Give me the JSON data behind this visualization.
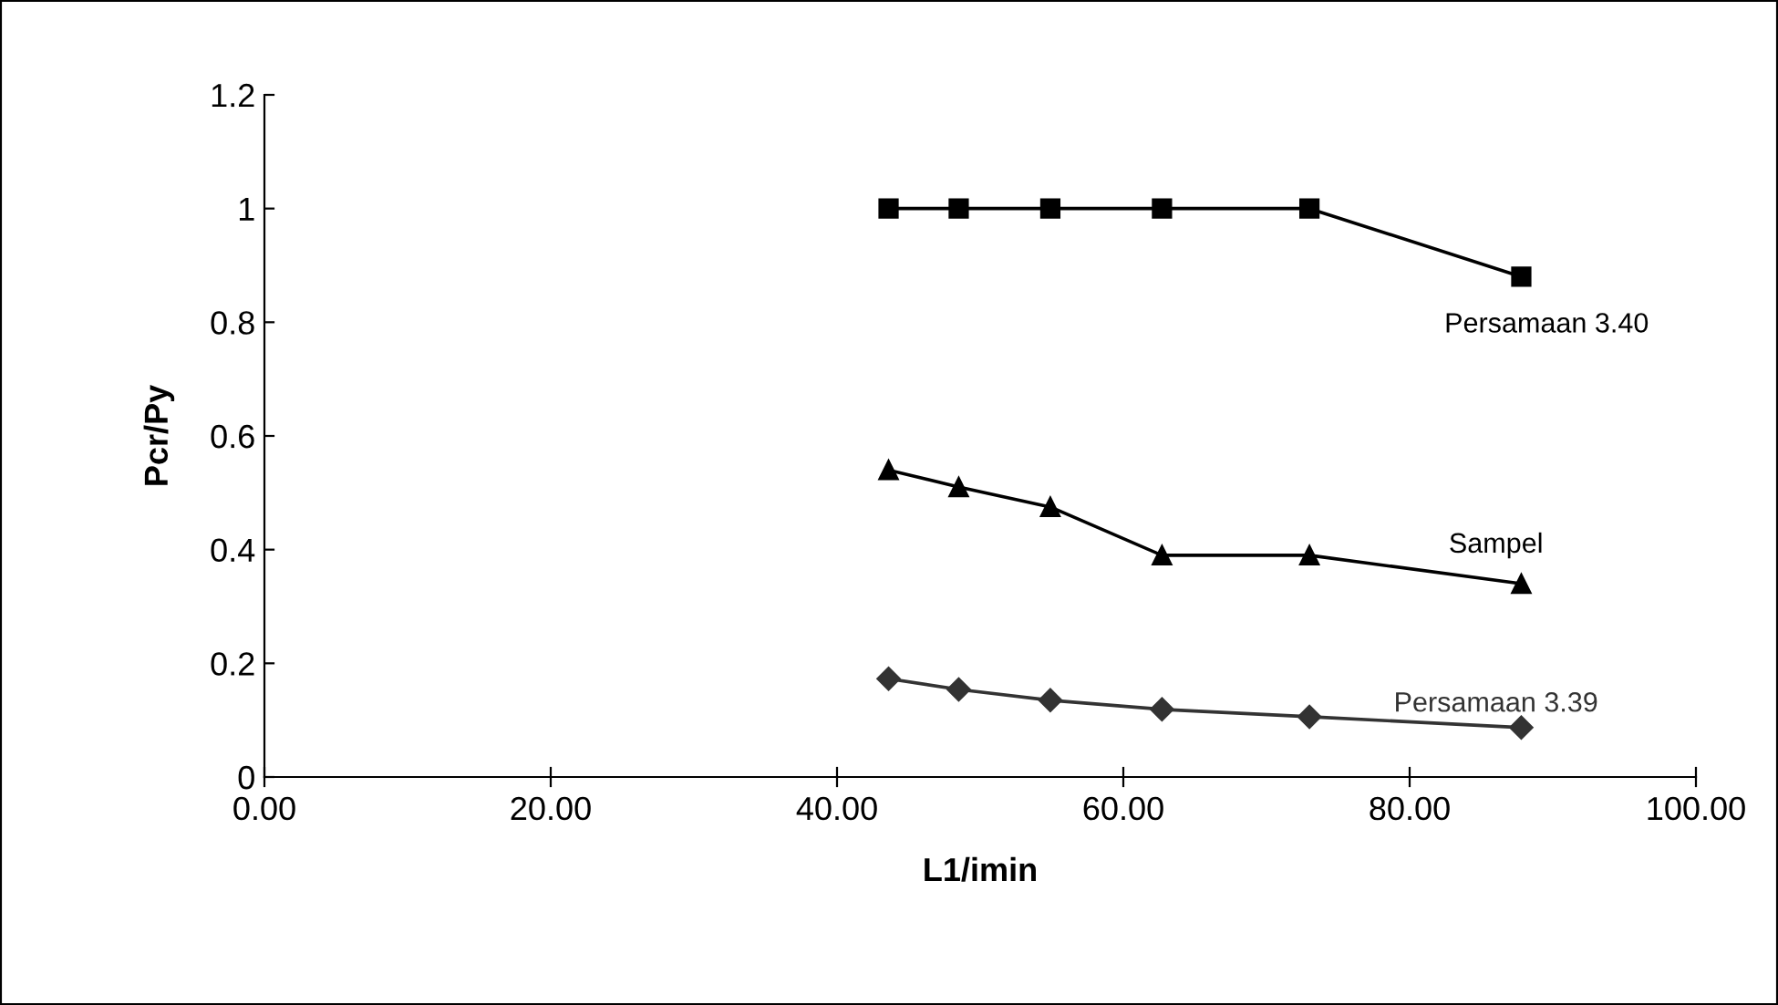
{
  "chart_data": {
    "type": "line",
    "xlabel": "L1/imin",
    "ylabel": "Pcr/Py",
    "x": [
      43.6,
      48.5,
      54.9,
      62.7,
      73.0,
      87.8
    ],
    "series": [
      {
        "name": "Persamaan 3.40",
        "color": "#000000",
        "marker": "square",
        "values": [
          1.0,
          1.0,
          1.0,
          1.0,
          1.0,
          0.88
        ]
      },
      {
        "name": "Sampel",
        "color": "#000000",
        "marker": "triangle",
        "values": [
          0.54,
          0.51,
          0.475,
          0.39,
          0.39,
          0.34
        ]
      },
      {
        "name": "Persamaan 3.39",
        "color": "#333333",
        "marker": "diamond",
        "values": [
          0.173,
          0.154,
          0.135,
          0.119,
          0.106,
          0.087
        ]
      }
    ],
    "xlim": [
      0,
      100
    ],
    "xticks": [
      {
        "value": 0,
        "label": "0.00"
      },
      {
        "value": 20,
        "label": "20.00"
      },
      {
        "value": 40,
        "label": "40.00"
      },
      {
        "value": 60,
        "label": "60.00"
      },
      {
        "value": 80,
        "label": "80.00"
      },
      {
        "value": 100,
        "label": "100.00"
      }
    ],
    "ylim": [
      0,
      1.2
    ],
    "yticks": [
      0,
      {
        "value": 0.2,
        "label": "0.2"
      },
      {
        "value": 0.4,
        "label": "0.4"
      },
      {
        "value": 0.6,
        "label": "0.6"
      },
      {
        "value": 0.8,
        "label": "0.8"
      },
      1,
      {
        "value": 1.2,
        "label": "1.2"
      }
    ],
    "grid": false,
    "legend": false,
    "line_style": "solid"
  }
}
